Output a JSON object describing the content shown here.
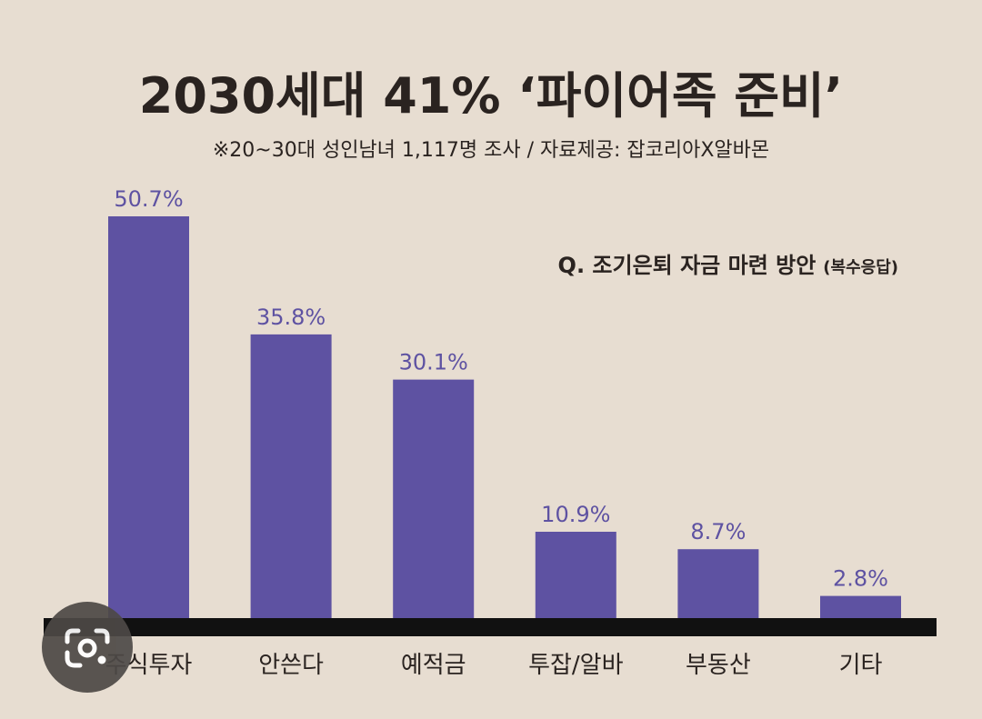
{
  "chart_data": {
    "type": "bar",
    "title": "2030세대 41% ‘파이어족 준비’",
    "subtitle": "※20~30대 성인남녀 1,117명 조사 / 자료제공: 잡코리아X알바몬",
    "question": "Q. 조기은퇴 자금 마련 방안",
    "question_note": "(복수응답)",
    "categories": [
      "주식투자",
      "안쓴다",
      "예적금",
      "투잡/알바",
      "부동산",
      "기타"
    ],
    "values": [
      50.7,
      35.8,
      30.1,
      10.9,
      8.7,
      2.8
    ],
    "value_labels": [
      "50.7%",
      "35.8%",
      "30.1%",
      "10.9%",
      "8.7%",
      "2.8%"
    ],
    "ylim": [
      0,
      50.7
    ],
    "unit": "%",
    "grid": false,
    "legend": "none"
  },
  "colors": {
    "background": "#e7ddd1",
    "bar": "#5e52a2",
    "value_label": "#5e52a2",
    "axis": "#111111",
    "text": "#2a2320"
  },
  "overlay": {
    "icon": "google-lens-icon"
  }
}
